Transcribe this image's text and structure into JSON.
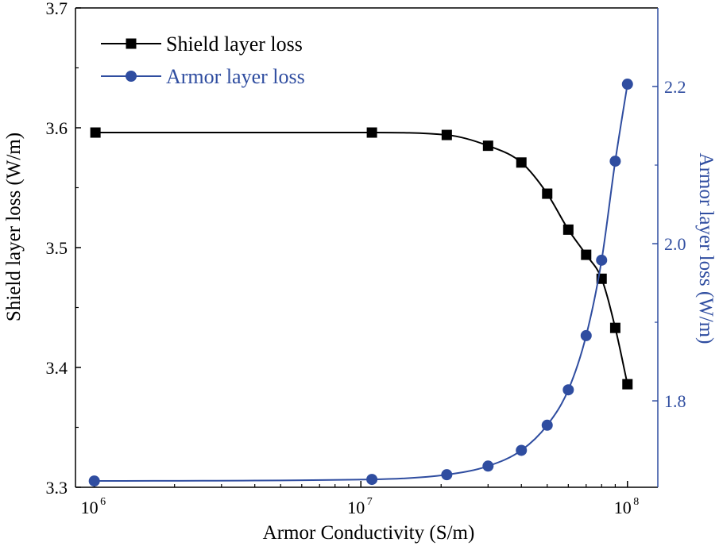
{
  "chart_data": {
    "type": "line",
    "xlabel": "Armor Conductivity (S/m)",
    "ylabel_left": "Shield layer loss (W/m)",
    "ylabel_right": "Armor layer loss (W/m)",
    "xscale": "log",
    "xlim": [
      850000,
      130000000
    ],
    "ylim_left": [
      3.3,
      3.7
    ],
    "ylim_right": [
      1.69,
      2.3
    ],
    "x_ticks": [
      {
        "value": 1000000,
        "base": "10",
        "exp": "6"
      },
      {
        "value": 10000000,
        "base": "10",
        "exp": "7"
      },
      {
        "value": 100000000,
        "base": "10",
        "exp": "8"
      }
    ],
    "y_ticks_left": [
      {
        "value": 3.3,
        "label": "3.3"
      },
      {
        "value": 3.4,
        "label": "3.4"
      },
      {
        "value": 3.5,
        "label": "3.5"
      },
      {
        "value": 3.6,
        "label": "3.6"
      },
      {
        "value": 3.7,
        "label": "3.7"
      }
    ],
    "y_ticks_right": [
      {
        "value": 1.8,
        "label": "1.8"
      },
      {
        "value": 2.0,
        "label": "2.0"
      },
      {
        "value": 2.2,
        "label": "2.2"
      }
    ],
    "legend_position": "top-left",
    "series": [
      {
        "name": "Shield layer loss",
        "axis": "left",
        "color": "#000000",
        "marker": "square",
        "x": [
          1010000,
          11000000,
          21000000,
          30000000,
          40000000,
          50000000,
          60000000,
          70000000,
          80000000,
          90000000,
          100000000
        ],
        "y": [
          3.596,
          3.596,
          3.594,
          3.585,
          3.571,
          3.545,
          3.515,
          3.494,
          3.474,
          3.433,
          3.386
        ]
      },
      {
        "name": "Armor layer loss",
        "axis": "right",
        "color": "#2f4da0",
        "marker": "circle",
        "x": [
          1000000,
          11000000,
          21000000,
          30000000,
          40000000,
          50000000,
          60000000,
          70000000,
          80000000,
          90000000,
          100000000
        ],
        "y": [
          1.698,
          1.7,
          1.706,
          1.717,
          1.737,
          1.769,
          1.814,
          1.883,
          1.979,
          2.105,
          2.203
        ]
      }
    ]
  }
}
